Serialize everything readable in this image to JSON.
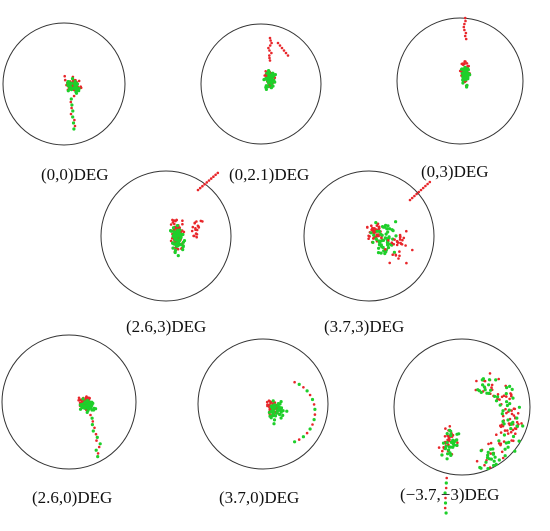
{
  "colors": {
    "red_series": "#e8262a",
    "green_series": "#1ecf2a",
    "circle_stroke": "#333333"
  },
  "panels": [
    {
      "id": "p00",
      "label": "(0,0)DEG"
    },
    {
      "id": "p021",
      "label": "(0,2.1)DEG"
    },
    {
      "id": "p03",
      "label": "(0,3)DEG"
    },
    {
      "id": "p263",
      "label": "(2.6,3)DEG"
    },
    {
      "id": "p373",
      "label": "(3.7,3)DEG"
    },
    {
      "id": "p260",
      "label": "(2.6,0)DEG"
    },
    {
      "id": "p370",
      "label": "(3.7,0)DEG"
    },
    {
      "id": "pm37m3",
      "label": "(−3.7,−3)DEG"
    }
  ]
}
